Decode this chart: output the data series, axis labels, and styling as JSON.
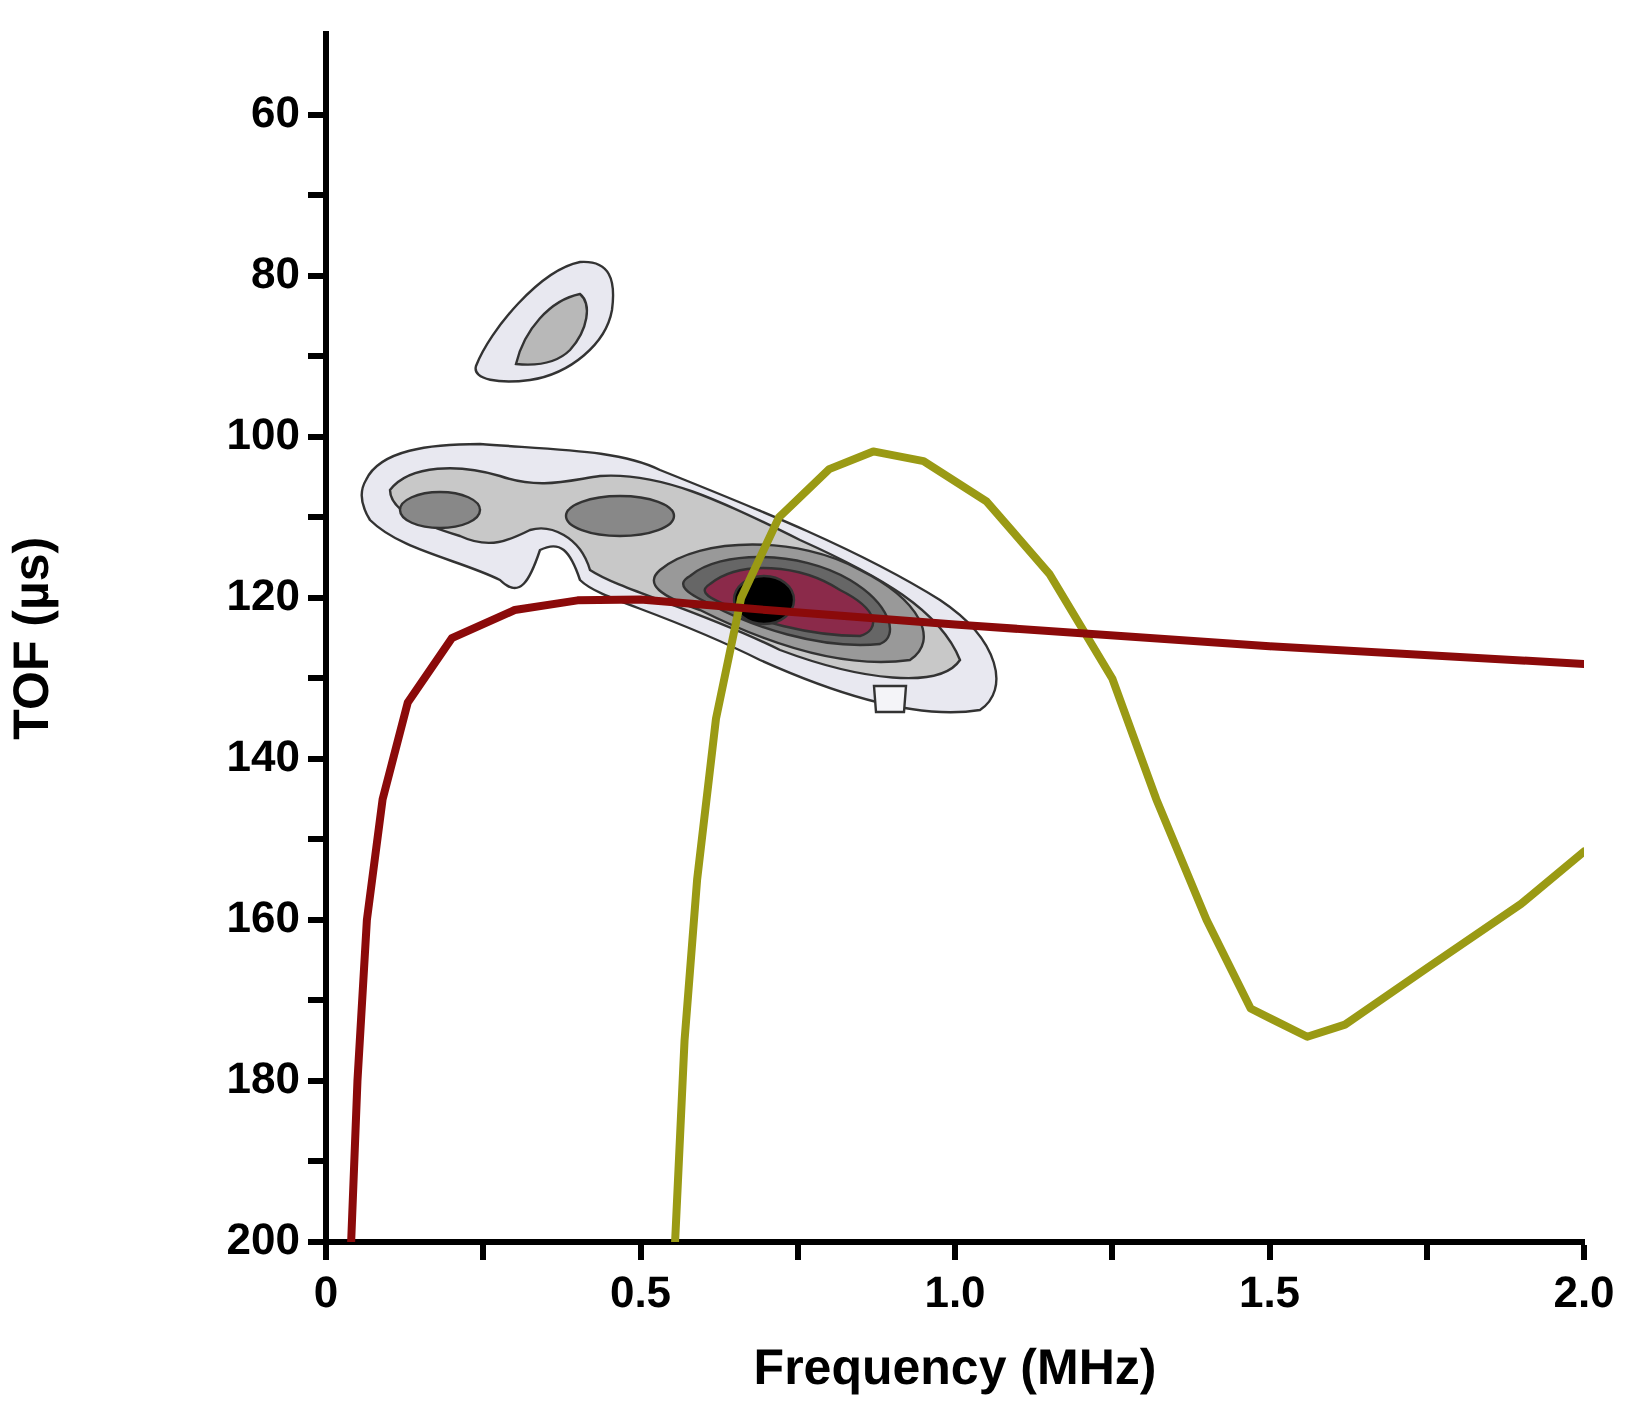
{
  "chart_data": {
    "type": "line",
    "xlabel": "Frequency (MHz)",
    "ylabel": "TOF (µs)",
    "marker": "none",
    "xlim": [
      0,
      2
    ],
    "xticks": [
      0,
      {
        "value": 0.25,
        "label": null
      },
      0.5,
      {
        "value": 0.75,
        "label": null
      },
      {
        "value": 1,
        "label": "1.0"
      },
      {
        "value": 1.25,
        "label": null
      },
      1.5,
      {
        "value": 1.75,
        "label": null
      },
      {
        "value": 2,
        "label": "2.0"
      }
    ],
    "ylim": [
      200,
      50
    ],
    "yticks": [
      60,
      {
        "value": 70,
        "label": null
      },
      80,
      {
        "value": 90,
        "label": null
      },
      100,
      {
        "value": 110,
        "label": null
      },
      120,
      {
        "value": 130,
        "label": null
      },
      140,
      {
        "value": 150,
        "label": null
      },
      160,
      {
        "value": 170,
        "label": null
      },
      180,
      {
        "value": 190,
        "label": null
      },
      200
    ],
    "series": [
      {
        "color": "#8b0a0a",
        "x": [
          0.04,
          0.05,
          0.065,
          0.09,
          0.13,
          0.2,
          0.3,
          0.4,
          0.5,
          0.7,
          1.0,
          1.5,
          2.0
        ],
        "values": [
          200,
          180,
          160,
          145,
          133,
          125,
          121.5,
          120.3,
          120.2,
          121.5,
          123.3,
          126,
          128.2
        ]
      },
      {
        "color": "#9a9a14",
        "x": [
          0.555,
          0.57,
          0.59,
          0.62,
          0.66,
          0.72,
          0.8,
          0.87,
          0.95,
          1.05,
          1.15,
          1.25,
          1.32,
          1.4,
          1.47,
          1.56,
          1.62,
          1.75,
          1.9,
          2.0
        ],
        "values": [
          200,
          175,
          155,
          135,
          120,
          110,
          104,
          101.8,
          103,
          108,
          117,
          130,
          145,
          160,
          171,
          174.5,
          173,
          166,
          158,
          151.5
        ]
      }
    ]
  }
}
